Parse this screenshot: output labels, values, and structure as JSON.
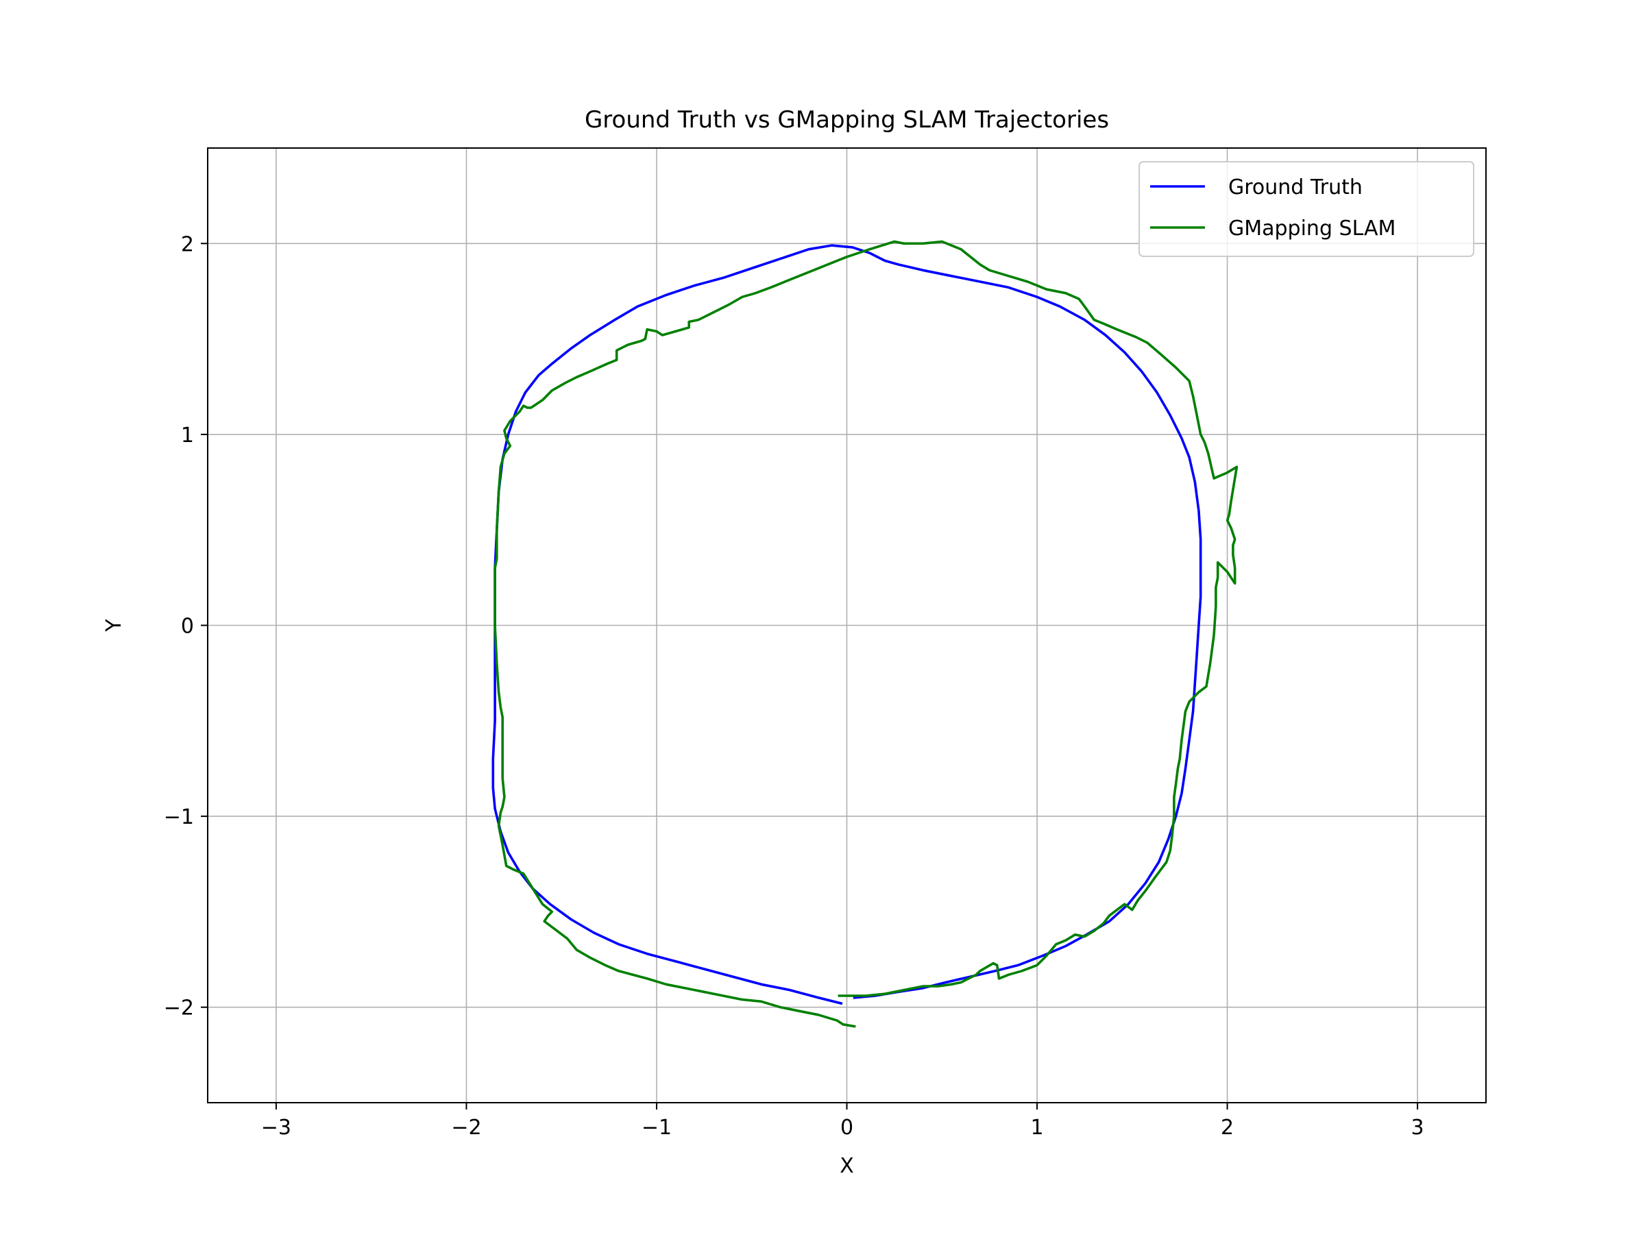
{
  "chart_data": {
    "type": "line",
    "title": "Ground Truth vs GMapping SLAM Trajectories",
    "xlabel": "X",
    "ylabel": "Y",
    "xlim": [
      -3.36,
      3.36
    ],
    "ylim": [
      -2.5,
      2.5
    ],
    "x_ticks": [
      -3,
      -2,
      -1,
      0,
      1,
      2,
      3
    ],
    "y_ticks": [
      -2,
      -1,
      0,
      1,
      2
    ],
    "x_tick_labels": [
      "−3",
      "−2",
      "−1",
      "0",
      "1",
      "2",
      "3"
    ],
    "y_tick_labels": [
      "−2",
      "−1",
      "0",
      "1",
      "2"
    ],
    "grid": true,
    "legend_position": "top-right",
    "series": [
      {
        "name": "Ground Truth",
        "color": "#0000ff",
        "points": [
          [
            -0.03,
            -1.98
          ],
          [
            -0.15,
            -1.95
          ],
          [
            -0.3,
            -1.91
          ],
          [
            -0.45,
            -1.88
          ],
          [
            -0.6,
            -1.84
          ],
          [
            -0.75,
            -1.8
          ],
          [
            -0.9,
            -1.76
          ],
          [
            -1.05,
            -1.72
          ],
          [
            -1.2,
            -1.67
          ],
          [
            -1.33,
            -1.61
          ],
          [
            -1.45,
            -1.54
          ],
          [
            -1.56,
            -1.46
          ],
          [
            -1.65,
            -1.38
          ],
          [
            -1.72,
            -1.29
          ],
          [
            -1.78,
            -1.19
          ],
          [
            -1.82,
            -1.08
          ],
          [
            -1.85,
            -0.96
          ],
          [
            -1.86,
            -0.85
          ],
          [
            -1.86,
            -0.7
          ],
          [
            -1.85,
            -0.5
          ],
          [
            -1.85,
            -0.3
          ],
          [
            -1.85,
            -0.1
          ],
          [
            -1.85,
            0.1
          ],
          [
            -1.85,
            0.3
          ],
          [
            -1.84,
            0.5
          ],
          [
            -1.83,
            0.7
          ],
          [
            -1.81,
            0.87
          ],
          [
            -1.78,
            1.0
          ],
          [
            -1.74,
            1.12
          ],
          [
            -1.69,
            1.22
          ],
          [
            -1.62,
            1.31
          ],
          [
            -1.55,
            1.37
          ],
          [
            -1.45,
            1.45
          ],
          [
            -1.35,
            1.52
          ],
          [
            -1.22,
            1.6
          ],
          [
            -1.1,
            1.67
          ],
          [
            -0.95,
            1.73
          ],
          [
            -0.8,
            1.78
          ],
          [
            -0.65,
            1.82
          ],
          [
            -0.5,
            1.87
          ],
          [
            -0.35,
            1.92
          ],
          [
            -0.2,
            1.97
          ],
          [
            -0.08,
            1.99
          ],
          [
            0.03,
            1.98
          ],
          [
            0.12,
            1.95
          ],
          [
            0.2,
            1.91
          ],
          [
            0.27,
            1.89
          ],
          [
            0.4,
            1.86
          ],
          [
            0.55,
            1.83
          ],
          [
            0.7,
            1.8
          ],
          [
            0.85,
            1.77
          ],
          [
            1.0,
            1.72
          ],
          [
            1.12,
            1.67
          ],
          [
            1.25,
            1.6
          ],
          [
            1.36,
            1.52
          ],
          [
            1.46,
            1.43
          ],
          [
            1.55,
            1.33
          ],
          [
            1.63,
            1.22
          ],
          [
            1.7,
            1.1
          ],
          [
            1.76,
            0.98
          ],
          [
            1.8,
            0.88
          ],
          [
            1.83,
            0.75
          ],
          [
            1.85,
            0.6
          ],
          [
            1.86,
            0.45
          ],
          [
            1.86,
            0.3
          ],
          [
            1.86,
            0.15
          ],
          [
            1.85,
            0.0
          ],
          [
            1.84,
            -0.15
          ],
          [
            1.83,
            -0.3
          ],
          [
            1.82,
            -0.45
          ],
          [
            1.8,
            -0.6
          ],
          [
            1.78,
            -0.75
          ],
          [
            1.76,
            -0.88
          ],
          [
            1.73,
            -1.0
          ],
          [
            1.69,
            -1.12
          ],
          [
            1.64,
            -1.24
          ],
          [
            1.57,
            -1.35
          ],
          [
            1.48,
            -1.46
          ],
          [
            1.38,
            -1.55
          ],
          [
            1.26,
            -1.62
          ],
          [
            1.15,
            -1.68
          ],
          [
            1.03,
            -1.73
          ],
          [
            0.9,
            -1.78
          ],
          [
            0.78,
            -1.81
          ],
          [
            0.65,
            -1.84
          ],
          [
            0.52,
            -1.87
          ],
          [
            0.4,
            -1.9
          ],
          [
            0.27,
            -1.92
          ],
          [
            0.15,
            -1.94
          ],
          [
            0.04,
            -1.95
          ]
        ]
      },
      {
        "name": "GMapping SLAM",
        "color": "#008000",
        "points": [
          [
            0.04,
            -2.1
          ],
          [
            -0.02,
            -2.09
          ],
          [
            -0.05,
            -2.07
          ],
          [
            -0.15,
            -2.04
          ],
          [
            -0.25,
            -2.02
          ],
          [
            -0.35,
            -2.0
          ],
          [
            -0.45,
            -1.97
          ],
          [
            -0.55,
            -1.96
          ],
          [
            -0.65,
            -1.94
          ],
          [
            -0.8,
            -1.91
          ],
          [
            -0.95,
            -1.88
          ],
          [
            -1.05,
            -1.85
          ],
          [
            -1.2,
            -1.81
          ],
          [
            -1.27,
            -1.78
          ],
          [
            -1.35,
            -1.74
          ],
          [
            -1.42,
            -1.7
          ],
          [
            -1.47,
            -1.64
          ],
          [
            -1.55,
            -1.58
          ],
          [
            -1.59,
            -1.55
          ],
          [
            -1.57,
            -1.52
          ],
          [
            -1.55,
            -1.5
          ],
          [
            -1.6,
            -1.46
          ],
          [
            -1.65,
            -1.38
          ],
          [
            -1.7,
            -1.3
          ],
          [
            -1.75,
            -1.28
          ],
          [
            -1.79,
            -1.26
          ],
          [
            -1.81,
            -1.15
          ],
          [
            -1.83,
            -1.05
          ],
          [
            -1.82,
            -0.98
          ],
          [
            -1.81,
            -0.95
          ],
          [
            -1.8,
            -0.9
          ],
          [
            -1.81,
            -0.8
          ],
          [
            -1.81,
            -0.65
          ],
          [
            -1.81,
            -0.52
          ],
          [
            -1.81,
            -0.48
          ],
          [
            -1.82,
            -0.43
          ],
          [
            -1.83,
            -0.35
          ],
          [
            -1.84,
            -0.2
          ],
          [
            -1.85,
            0.0
          ],
          [
            -1.85,
            0.15
          ],
          [
            -1.85,
            0.3
          ],
          [
            -1.84,
            0.35
          ],
          [
            -1.84,
            0.5
          ],
          [
            -1.83,
            0.7
          ],
          [
            -1.82,
            0.83
          ],
          [
            -1.8,
            0.9
          ],
          [
            -1.77,
            0.94
          ],
          [
            -1.79,
            0.98
          ],
          [
            -1.8,
            1.02
          ],
          [
            -1.77,
            1.07
          ],
          [
            -1.72,
            1.12
          ],
          [
            -1.7,
            1.15
          ],
          [
            -1.68,
            1.14
          ],
          [
            -1.66,
            1.14
          ],
          [
            -1.6,
            1.18
          ],
          [
            -1.55,
            1.23
          ],
          [
            -1.48,
            1.27
          ],
          [
            -1.42,
            1.3
          ],
          [
            -1.35,
            1.33
          ],
          [
            -1.26,
            1.37
          ],
          [
            -1.21,
            1.39
          ],
          [
            -1.21,
            1.44
          ],
          [
            -1.15,
            1.47
          ],
          [
            -1.08,
            1.49
          ],
          [
            -1.06,
            1.5
          ],
          [
            -1.05,
            1.55
          ],
          [
            -1.0,
            1.54
          ],
          [
            -0.97,
            1.52
          ],
          [
            -0.9,
            1.54
          ],
          [
            -0.83,
            1.56
          ],
          [
            -0.83,
            1.59
          ],
          [
            -0.78,
            1.6
          ],
          [
            -0.7,
            1.64
          ],
          [
            -0.62,
            1.68
          ],
          [
            -0.55,
            1.72
          ],
          [
            -0.48,
            1.74
          ],
          [
            -0.4,
            1.77
          ],
          [
            -0.3,
            1.81
          ],
          [
            -0.2,
            1.85
          ],
          [
            -0.1,
            1.89
          ],
          [
            0.0,
            1.93
          ],
          [
            0.12,
            1.97
          ],
          [
            0.25,
            2.01
          ],
          [
            0.3,
            2.0
          ],
          [
            0.4,
            2.0
          ],
          [
            0.5,
            2.01
          ],
          [
            0.55,
            1.99
          ],
          [
            0.6,
            1.97
          ],
          [
            0.65,
            1.93
          ],
          [
            0.7,
            1.89
          ],
          [
            0.75,
            1.86
          ],
          [
            0.85,
            1.83
          ],
          [
            0.95,
            1.8
          ],
          [
            1.0,
            1.78
          ],
          [
            1.05,
            1.76
          ],
          [
            1.15,
            1.74
          ],
          [
            1.22,
            1.71
          ],
          [
            1.25,
            1.67
          ],
          [
            1.3,
            1.6
          ],
          [
            1.35,
            1.58
          ],
          [
            1.42,
            1.55
          ],
          [
            1.52,
            1.51
          ],
          [
            1.58,
            1.48
          ],
          [
            1.65,
            1.42
          ],
          [
            1.73,
            1.35
          ],
          [
            1.8,
            1.28
          ],
          [
            1.82,
            1.2
          ],
          [
            1.84,
            1.1
          ],
          [
            1.86,
            1.0
          ],
          [
            1.88,
            0.96
          ],
          [
            1.9,
            0.9
          ],
          [
            1.93,
            0.77
          ],
          [
            2.0,
            0.8
          ],
          [
            2.05,
            0.83
          ],
          [
            2.02,
            0.65
          ],
          [
            2.01,
            0.58
          ],
          [
            2.0,
            0.55
          ],
          [
            2.02,
            0.51
          ],
          [
            2.04,
            0.45
          ],
          [
            2.03,
            0.42
          ],
          [
            2.03,
            0.37
          ],
          [
            2.04,
            0.3
          ],
          [
            2.04,
            0.22
          ],
          [
            2.0,
            0.28
          ],
          [
            1.95,
            0.33
          ],
          [
            1.95,
            0.25
          ],
          [
            1.94,
            0.2
          ],
          [
            1.94,
            0.1
          ],
          [
            1.93,
            -0.05
          ],
          [
            1.91,
            -0.2
          ],
          [
            1.89,
            -0.32
          ],
          [
            1.85,
            -0.35
          ],
          [
            1.8,
            -0.4
          ],
          [
            1.78,
            -0.45
          ],
          [
            1.76,
            -0.6
          ],
          [
            1.75,
            -0.7
          ],
          [
            1.74,
            -0.75
          ],
          [
            1.73,
            -0.83
          ],
          [
            1.72,
            -0.9
          ],
          [
            1.72,
            -1.0
          ],
          [
            1.71,
            -1.1
          ],
          [
            1.7,
            -1.18
          ],
          [
            1.68,
            -1.24
          ],
          [
            1.62,
            -1.32
          ],
          [
            1.57,
            -1.39
          ],
          [
            1.53,
            -1.44
          ],
          [
            1.5,
            -1.49
          ],
          [
            1.46,
            -1.46
          ],
          [
            1.38,
            -1.52
          ],
          [
            1.35,
            -1.56
          ],
          [
            1.3,
            -1.6
          ],
          [
            1.25,
            -1.63
          ],
          [
            1.2,
            -1.62
          ],
          [
            1.15,
            -1.65
          ],
          [
            1.1,
            -1.67
          ],
          [
            1.05,
            -1.73
          ],
          [
            1.0,
            -1.78
          ],
          [
            0.92,
            -1.81
          ],
          [
            0.85,
            -1.83
          ],
          [
            0.8,
            -1.85
          ],
          [
            0.79,
            -1.78
          ],
          [
            0.77,
            -1.77
          ],
          [
            0.7,
            -1.81
          ],
          [
            0.68,
            -1.83
          ],
          [
            0.6,
            -1.87
          ],
          [
            0.55,
            -1.88
          ],
          [
            0.48,
            -1.89
          ],
          [
            0.4,
            -1.89
          ],
          [
            0.3,
            -1.91
          ],
          [
            0.2,
            -1.93
          ],
          [
            0.1,
            -1.94
          ],
          [
            0.0,
            -1.94
          ],
          [
            -0.04,
            -1.94
          ]
        ]
      }
    ]
  }
}
